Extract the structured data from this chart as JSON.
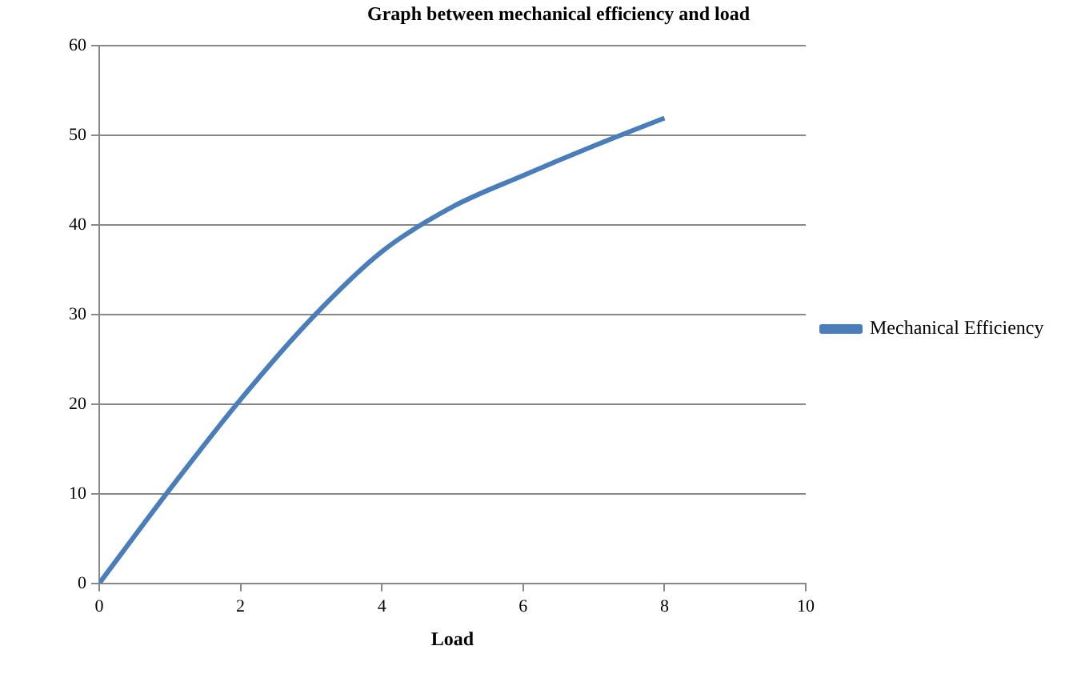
{
  "chart_data": {
    "type": "line",
    "title": "Graph between mechanical efficiency and load",
    "xlabel": "Load",
    "x": [
      0,
      1,
      2,
      3,
      4,
      5,
      6,
      7,
      8
    ],
    "series": [
      {
        "name": "Mechanical Efficiency",
        "color": "#4a7ebb",
        "values": [
          0,
          10.5,
          20.5,
          29.5,
          37,
          42,
          45.5,
          48.8,
          51.9
        ]
      }
    ],
    "xlim": [
      0,
      10
    ],
    "xticks": [
      0,
      2,
      4,
      6,
      8,
      10
    ],
    "ylim": [
      0,
      60
    ],
    "yticks": [
      0,
      10,
      20,
      30,
      40,
      50,
      60
    ],
    "grid": "y",
    "legend": "right",
    "marker": "none"
  }
}
